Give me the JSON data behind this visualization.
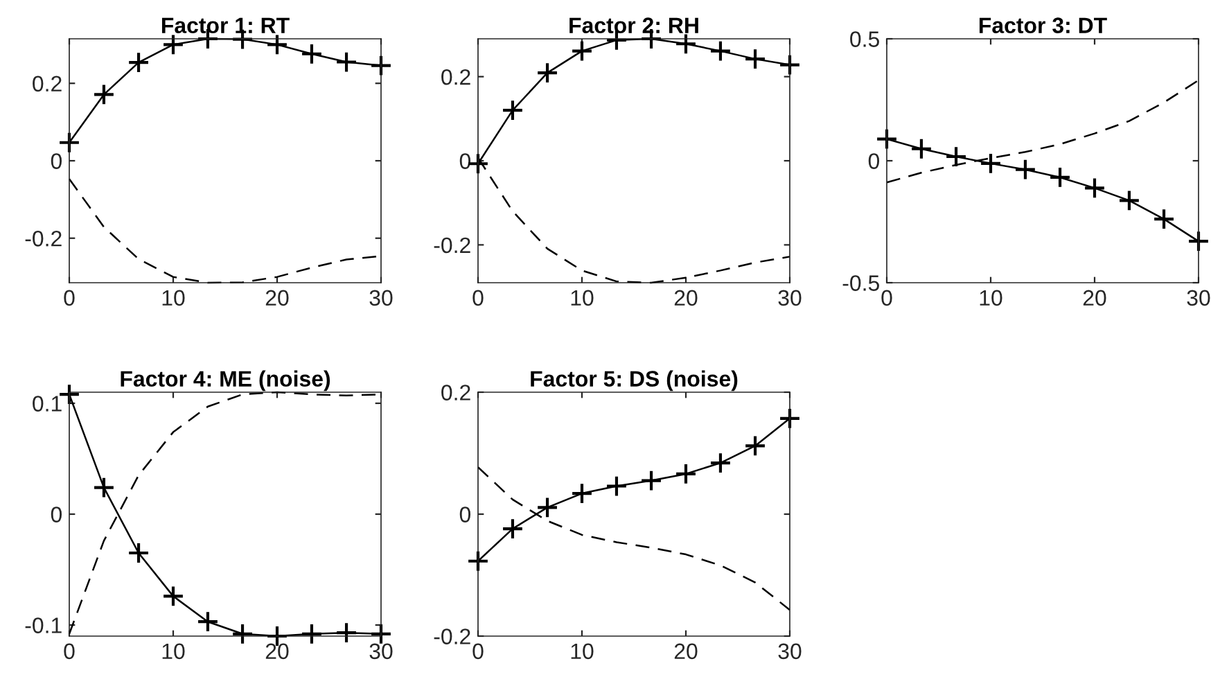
{
  "chart_data": [
    {
      "type": "line",
      "title": "Factor 1: RT",
      "x": [
        0,
        3.33,
        6.67,
        10,
        13.33,
        16.67,
        20,
        23.33,
        26.67,
        30
      ],
      "xlim": [
        0,
        30
      ],
      "xticks": [
        0,
        10,
        20,
        30
      ],
      "ylim": [
        -0.315,
        0.315
      ],
      "yticks": [
        -0.2,
        0,
        0.2
      ],
      "grid": false,
      "series": [
        {
          "color": "#000000",
          "marker": "cross",
          "line_style": "solid",
          "values": [
            0.047,
            0.171,
            0.254,
            0.3,
            0.315,
            0.314,
            0.3,
            0.276,
            0.255,
            0.246
          ]
        },
        {
          "color": "#000000",
          "marker": "none",
          "line_style": "dashed",
          "values": [
            -0.047,
            -0.171,
            -0.254,
            -0.3,
            -0.315,
            -0.314,
            -0.3,
            -0.276,
            -0.255,
            -0.246
          ]
        }
      ]
    },
    {
      "type": "line",
      "title": "Factor 2: RH",
      "x": [
        0,
        3.33,
        6.67,
        10,
        13.33,
        16.67,
        20,
        23.33,
        26.67,
        30
      ],
      "xlim": [
        0,
        30
      ],
      "xticks": [
        0,
        10,
        20,
        30
      ],
      "ylim": [
        -0.29,
        0.29
      ],
      "yticks": [
        -0.2,
        0,
        0.2
      ],
      "grid": false,
      "series": [
        {
          "color": "#000000",
          "marker": "cross",
          "line_style": "solid",
          "values": [
            -0.007,
            0.12,
            0.209,
            0.261,
            0.287,
            0.29,
            0.278,
            0.261,
            0.242,
            0.228
          ]
        },
        {
          "color": "#000000",
          "marker": "none",
          "line_style": "dashed",
          "values": [
            0.007,
            -0.12,
            -0.209,
            -0.261,
            -0.287,
            -0.29,
            -0.278,
            -0.261,
            -0.242,
            -0.228
          ]
        }
      ]
    },
    {
      "type": "line",
      "title": "Factor 3: DT",
      "x": [
        0,
        3.33,
        6.67,
        10,
        13.33,
        16.67,
        20,
        23.33,
        26.67,
        30
      ],
      "xlim": [
        0,
        30
      ],
      "xticks": [
        0,
        10,
        20,
        30
      ],
      "ylim": [
        -0.5,
        0.5
      ],
      "yticks": [
        -0.5,
        0,
        0.5
      ],
      "grid": false,
      "series": [
        {
          "color": "#000000",
          "marker": "cross",
          "line_style": "solid",
          "values": [
            0.089,
            0.049,
            0.017,
            -0.011,
            -0.036,
            -0.068,
            -0.112,
            -0.163,
            -0.239,
            -0.33
          ]
        },
        {
          "color": "#000000",
          "marker": "none",
          "line_style": "dashed",
          "values": [
            -0.089,
            -0.049,
            -0.017,
            0.011,
            0.036,
            0.068,
            0.112,
            0.163,
            0.239,
            0.33
          ]
        }
      ]
    },
    {
      "type": "line",
      "title": "Factor 4: ME (noise)",
      "x": [
        0,
        3.33,
        6.67,
        10,
        13.33,
        16.67,
        20,
        23.33,
        26.67,
        30
      ],
      "xlim": [
        0,
        30
      ],
      "xticks": [
        0,
        10,
        20,
        30
      ],
      "ylim": [
        -0.11,
        0.11
      ],
      "yticks": [
        -0.1,
        0,
        0.1
      ],
      "grid": false,
      "series": [
        {
          "color": "#000000",
          "marker": "cross",
          "line_style": "solid",
          "values": [
            0.108,
            0.024,
            -0.035,
            -0.074,
            -0.097,
            -0.108,
            -0.11,
            -0.108,
            -0.107,
            -0.108
          ]
        },
        {
          "color": "#000000",
          "marker": "none",
          "line_style": "dashed",
          "values": [
            -0.108,
            -0.024,
            0.035,
            0.074,
            0.097,
            0.108,
            0.11,
            0.108,
            0.107,
            0.108
          ]
        }
      ]
    },
    {
      "type": "line",
      "title": "Factor 5: DS (noise)",
      "x": [
        0,
        3.33,
        6.67,
        10,
        13.33,
        16.67,
        20,
        23.33,
        26.67,
        30
      ],
      "xlim": [
        0,
        30
      ],
      "xticks": [
        0,
        10,
        20,
        30
      ],
      "ylim": [
        -0.2,
        0.2
      ],
      "yticks": [
        -0.2,
        0,
        0.2
      ],
      "grid": false,
      "series": [
        {
          "color": "#000000",
          "marker": "cross",
          "line_style": "solid",
          "values": [
            -0.077,
            -0.024,
            0.011,
            0.034,
            0.046,
            0.055,
            0.066,
            0.084,
            0.112,
            0.157
          ]
        },
        {
          "color": "#000000",
          "marker": "none",
          "line_style": "dashed",
          "values": [
            0.077,
            0.024,
            -0.011,
            -0.034,
            -0.046,
            -0.055,
            -0.066,
            -0.084,
            -0.112,
            -0.157
          ]
        }
      ]
    }
  ]
}
